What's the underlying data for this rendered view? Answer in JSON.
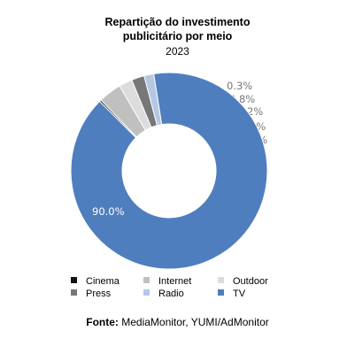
{
  "chart_data": {
    "type": "pie",
    "variant": "donut",
    "title_line1": "Repartição do investimento",
    "title_line2": "publicitário por meio",
    "subtitle": "2023",
    "slices": [
      {
        "name": "Cinema",
        "value": 0.3,
        "label": "0.3%",
        "color": "#111111"
      },
      {
        "name": "Internet",
        "value": 3.8,
        "label": "3.8%",
        "color": "#c0c0c0"
      },
      {
        "name": "Outdoor",
        "value": 2.2,
        "label": "2.2%",
        "color": "#dcdcdc"
      },
      {
        "name": "Press",
        "value": 2.1,
        "label": "2.1%",
        "color": "#777777"
      },
      {
        "name": "Radio",
        "value": 1.6,
        "label": "1.6%",
        "color": "#b4c8e4"
      },
      {
        "name": "TV",
        "value": 90.0,
        "label": "90.0%",
        "color": "#4f7ebf"
      }
    ],
    "legend": [
      "Cinema",
      "Internet",
      "Outdoor",
      "Press",
      "Radio",
      "TV"
    ],
    "legend_position": "bottom",
    "source_label": "Fonte:",
    "source_text": "MediaMonitor, YUMI/AdMonitor"
  }
}
